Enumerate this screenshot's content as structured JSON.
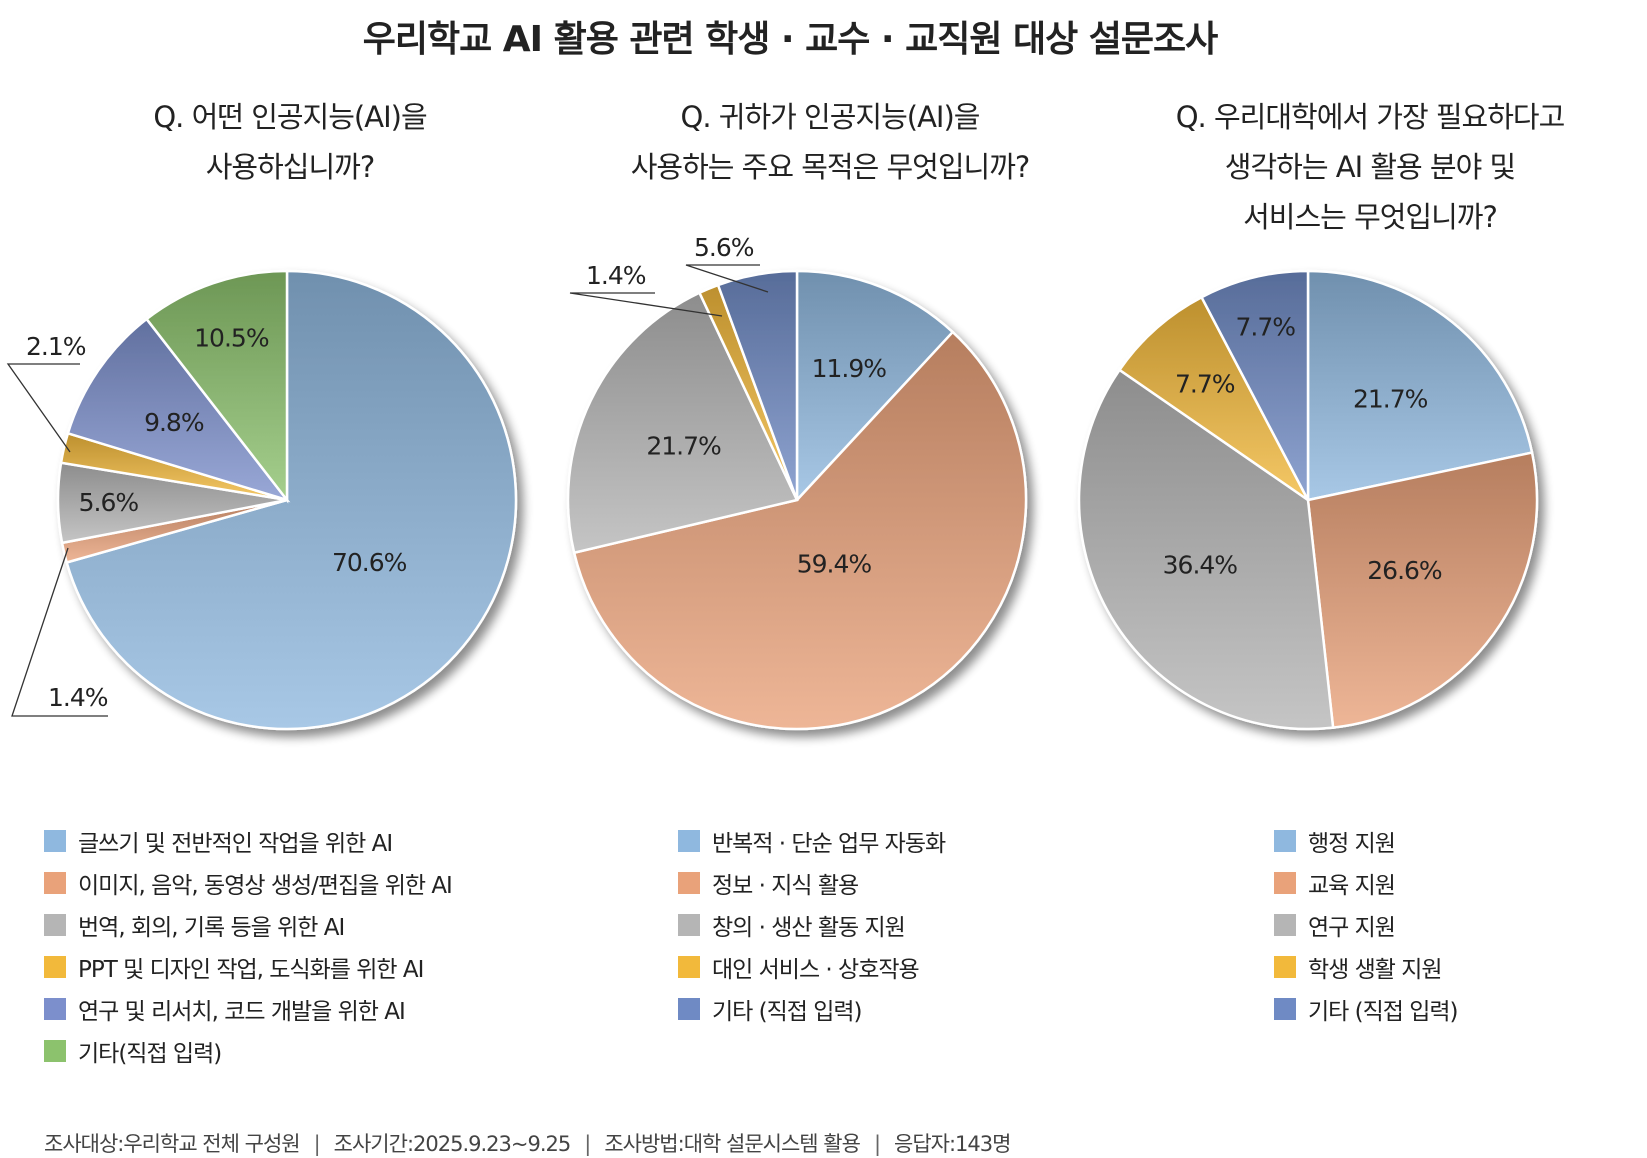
{
  "title": "우리학교 AI 활용 관련 학생 · 교수 · 교직원 대상 설문조사",
  "chart_data": [
    {
      "type": "pie",
      "question": [
        "Q. 어떤 인공지능(AI)을",
        "사용하십니까?"
      ],
      "categories": [
        "글쓰기 및 전반적인 작업을 위한 AI",
        "이미지, 음악, 동영상 생성/편집을 위한 AI",
        "번역, 회의, 기록 등을 위한 AI",
        "PPT 및 디자인 작업, 도식화를 위한 AI",
        "연구 및 리서치, 코드 개발을 위한 AI",
        "기타(직접 입력)"
      ],
      "values": [
        70.6,
        1.4,
        5.6,
        2.1,
        9.8,
        10.5
      ],
      "labels": [
        "70.6%",
        "1.4%",
        "5.6%",
        "2.1%",
        "9.8%",
        "10.5%"
      ],
      "colors": [
        "#8fb8df",
        "#e9a27a",
        "#b5b5b5",
        "#f2b93b",
        "#7c8fcc",
        "#8cc26d"
      ]
    },
    {
      "type": "pie",
      "question": [
        "Q. 귀하가 인공지능(AI)을",
        "사용하는 주요 목적은 무엇입니까?"
      ],
      "categories": [
        "반복적 · 단순 업무 자동화",
        "정보 · 지식 활용",
        "창의 · 생산 활동 지원",
        "대인 서비스 · 상호작용",
        "기타 (직접 입력)"
      ],
      "values": [
        11.9,
        59.4,
        21.7,
        1.4,
        5.6
      ],
      "labels": [
        "11.9%",
        "59.4%",
        "21.7%",
        "1.4%",
        "5.6%"
      ],
      "colors": [
        "#8fb8df",
        "#e9a27a",
        "#b5b5b5",
        "#f2b93b",
        "#6f8ac4"
      ]
    },
    {
      "type": "pie",
      "question": [
        "Q. 우리대학에서 가장 필요하다고",
        "생각하는 AI 활용 분야 및",
        "서비스는 무엇입니까?"
      ],
      "categories": [
        "행정 지원",
        "교육 지원",
        "연구 지원",
        "학생 생활 지원",
        "기타 (직접 입력)"
      ],
      "values": [
        21.7,
        26.6,
        36.4,
        7.7,
        7.7
      ],
      "labels": [
        "21.7%",
        "26.6%",
        "36.4%",
        "7.7%",
        "7.7%"
      ],
      "colors": [
        "#8fb8df",
        "#e9a27a",
        "#b5b5b5",
        "#f2b93b",
        "#6f8ac4"
      ]
    }
  ],
  "footer": {
    "subjects": "조사대상:우리학교 전체 구성원",
    "period": "조사기간:2025.9.23~9.25",
    "method": "조사방법:대학 설문시스템 활용",
    "respondents": "응답자:143명",
    "separator": "|"
  }
}
